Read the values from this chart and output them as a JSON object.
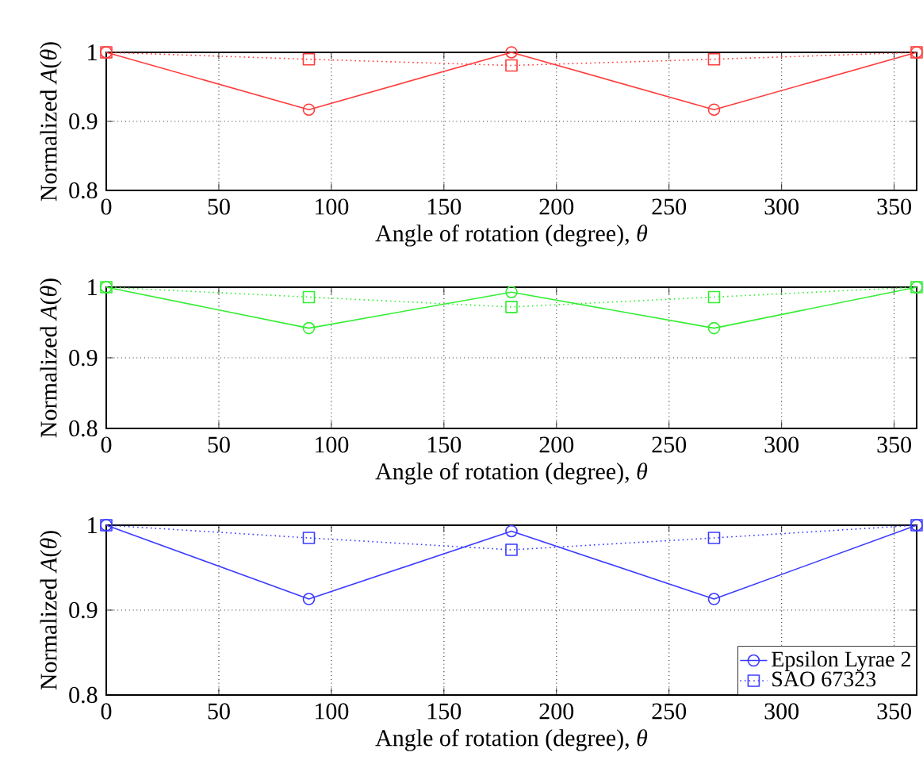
{
  "chart_data": [
    {
      "type": "line",
      "x": [
        0,
        90,
        180,
        270,
        360
      ],
      "xlabel": "Angle of rotation (degree), *θ*",
      "ylabel": "Normalized *A*(*θ*)",
      "xlim": [
        0,
        360
      ],
      "ylim": [
        0.8,
        1
      ],
      "xticks": [
        0,
        50,
        100,
        150,
        200,
        250,
        300,
        350
      ],
      "yticks": [
        0.8,
        0.9,
        1
      ],
      "grid": true,
      "series": [
        {
          "color": "#ff3b3b",
          "marker": "circle",
          "line_style": "solid",
          "values": [
            1,
            0.917,
            1,
            0.917,
            1
          ]
        },
        {
          "color": "#ff3b3b",
          "marker": "square",
          "line_style": "dotted",
          "values": [
            1,
            0.99,
            0.981,
            0.99,
            1
          ]
        }
      ]
    },
    {
      "type": "line",
      "x": [
        0,
        90,
        180,
        270,
        360
      ],
      "xlabel": "Angle of rotation (degree), *θ*",
      "ylabel": "Normalized *A*(*θ*)",
      "xlim": [
        0,
        360
      ],
      "ylim": [
        0.8,
        1
      ],
      "xticks": [
        0,
        50,
        100,
        150,
        200,
        250,
        300,
        350
      ],
      "yticks": [
        0.8,
        0.9,
        1
      ],
      "grid": true,
      "series": [
        {
          "color": "#33ee33",
          "marker": "circle",
          "line_style": "solid",
          "values": [
            1,
            0.942,
            0.993,
            0.942,
            1
          ]
        },
        {
          "color": "#33ee33",
          "marker": "square",
          "line_style": "dotted",
          "values": [
            1,
            0.986,
            0.972,
            0.986,
            1
          ]
        }
      ]
    },
    {
      "type": "line",
      "x": [
        0,
        90,
        180,
        270,
        360
      ],
      "xlabel": "Angle of rotation (degree), *θ*",
      "ylabel": "Normalized *A*(*θ*)",
      "xlim": [
        0,
        360
      ],
      "ylim": [
        0.8,
        1
      ],
      "xticks": [
        0,
        50,
        100,
        150,
        200,
        250,
        300,
        350
      ],
      "yticks": [
        0.8,
        0.9,
        1
      ],
      "grid": true,
      "legend": "bottom right",
      "series": [
        {
          "name": "Epsilon Lyrae 2",
          "color": "#3b3bff",
          "marker": "circle",
          "line_style": "solid",
          "values": [
            1,
            0.913,
            0.993,
            0.913,
            1
          ]
        },
        {
          "name": "SAO 67323",
          "color": "#3b3bff",
          "marker": "square",
          "line_style": "dotted",
          "values": [
            1,
            0.985,
            0.971,
            0.985,
            1
          ]
        }
      ]
    }
  ]
}
